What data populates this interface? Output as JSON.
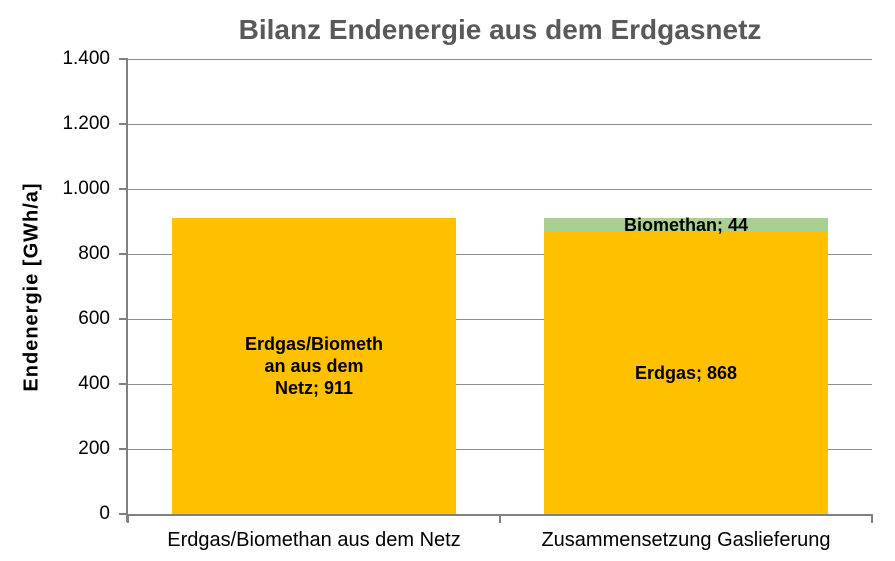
{
  "chart_data": {
    "type": "bar",
    "stacked": true,
    "title": "Bilanz Endenergie aus dem Erdgasnetz",
    "ylabel": "Endenergie [GWh/a]",
    "xlabel": "",
    "ylim": [
      0,
      1400
    ],
    "grid": true,
    "legend": false,
    "categories": [
      "Erdgas/Biomethan aus dem Netz",
      "Zusammensetzung Gaslieferung"
    ],
    "yticks": [
      {
        "value": 0,
        "label": "0"
      },
      {
        "value": 200,
        "label": "200"
      },
      {
        "value": 400,
        "label": "400"
      },
      {
        "value": 600,
        "label": "600"
      },
      {
        "value": 800,
        "label": "800"
      },
      {
        "value": 1000,
        "label": "1.000"
      },
      {
        "value": 1200,
        "label": "1.200"
      },
      {
        "value": 1400,
        "label": "1.400"
      }
    ],
    "bars": [
      {
        "category": "Erdgas/Biomethan aus dem Netz",
        "segments": [
          {
            "name": "Erdgas/Biomethan aus dem Netz",
            "value": 911,
            "color": "#FFC000",
            "label": "Erdgas/Biometh\nan aus dem\nNetz; 911"
          }
        ]
      },
      {
        "category": "Zusammensetzung Gaslieferung",
        "segments": [
          {
            "name": "Erdgas",
            "value": 868,
            "color": "#FFC000",
            "label": "Erdgas; 868"
          },
          {
            "name": "Biomethan",
            "value": 44,
            "color": "#A9D08E",
            "label": "Biomethan; 44"
          }
        ]
      }
    ],
    "colors": {
      "erdgas": "#FFC000",
      "biomethan": "#A9D08E",
      "title": "#595959",
      "axis": "#808080",
      "gridline": "#8C8C8C",
      "label_text": "#000000"
    }
  }
}
